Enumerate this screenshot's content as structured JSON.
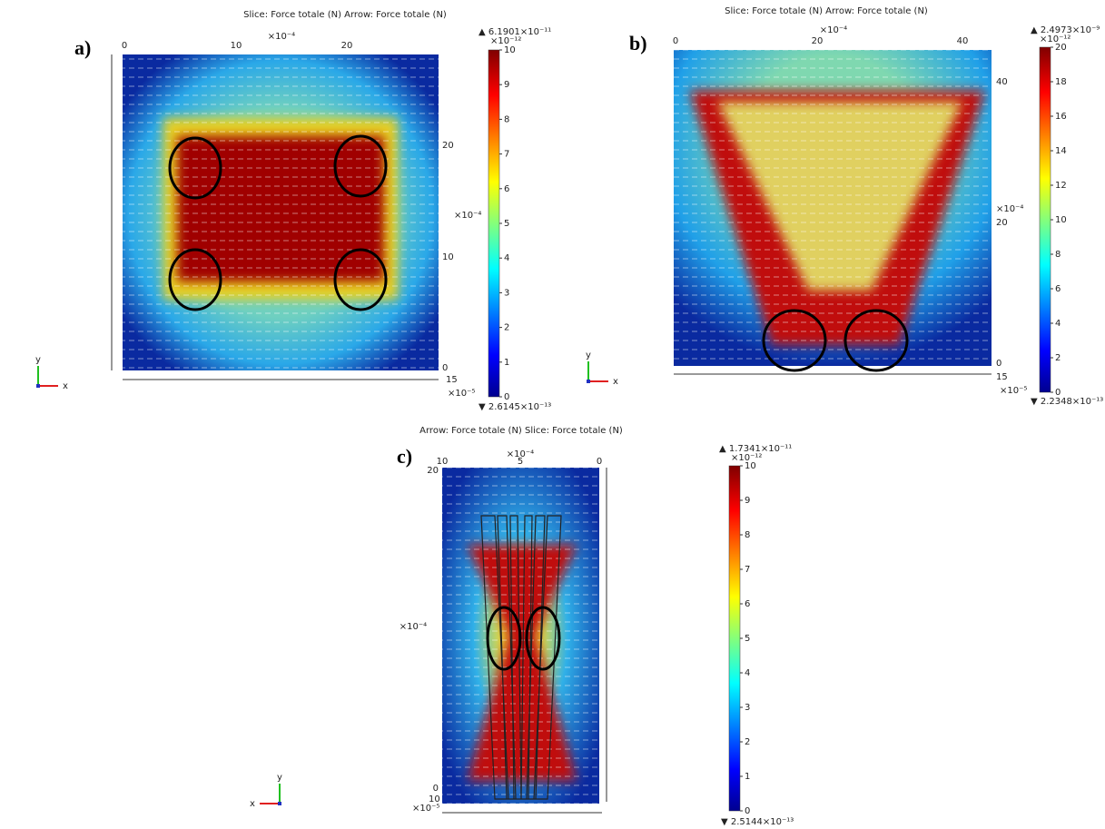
{
  "panels": [
    {
      "label": "a)",
      "title": "Slice: Force totale (N) Arrow: Force totale (N)",
      "top_exponent": "×10⁻⁴",
      "top_ticks": [
        "0",
        "10",
        "20"
      ],
      "side_exponent": "×10⁻⁴",
      "side_ticks": [
        "20",
        "10",
        "0"
      ],
      "corner": "15",
      "bottom_exponent": "×10⁻⁵",
      "colorbar": {
        "max": "▲ 6.1901×10⁻¹¹",
        "exponent": "×10⁻¹²",
        "ticks": [
          "0",
          "1",
          "2",
          "3",
          "4",
          "5",
          "6",
          "7",
          "8",
          "9",
          "10"
        ],
        "min": "▼ 2.6145×10⁻¹³"
      },
      "triad": {
        "y": "y",
        "x": "x"
      }
    },
    {
      "label": "b)",
      "title": "Slice: Force totale (N) Arrow: Force totale (N)",
      "top_exponent": "×10⁻⁴",
      "top_ticks": [
        "0",
        "20",
        "40"
      ],
      "side_exponent": "×10⁻⁴",
      "side_ticks": [
        "40",
        "20",
        "0"
      ],
      "corner": "15",
      "bottom_exponent": "×10⁻⁵",
      "colorbar": {
        "max": "▲ 2.4973×10⁻⁹",
        "exponent": "×10⁻¹²",
        "ticks": [
          "0",
          "2",
          "4",
          "6",
          "8",
          "10",
          "12",
          "14",
          "16",
          "18",
          "20"
        ],
        "min": "▼ 2.2348×10⁻¹³"
      },
      "triad": {
        "y": "y",
        "x": "x"
      }
    },
    {
      "label": "c)",
      "title": "Arrow: Force totale (N) Slice: Force totale (N)",
      "top_exponent": "×10⁻⁴",
      "top_ticks": [
        "10",
        "5",
        "0"
      ],
      "side_exponent": "×10⁻⁴",
      "side_ticks": [
        "20",
        "0"
      ],
      "corner": "10",
      "bottom_exponent": "×10⁻⁵",
      "colorbar": {
        "max": "▲ 1.7341×10⁻¹¹",
        "exponent": "×10⁻¹²",
        "ticks": [
          "0",
          "1",
          "2",
          "3",
          "4",
          "5",
          "6",
          "7",
          "8",
          "9",
          "10"
        ],
        "min": "▼ 2.5144×10⁻¹³"
      },
      "triad": {
        "y": "y",
        "x": "x"
      }
    }
  ]
}
